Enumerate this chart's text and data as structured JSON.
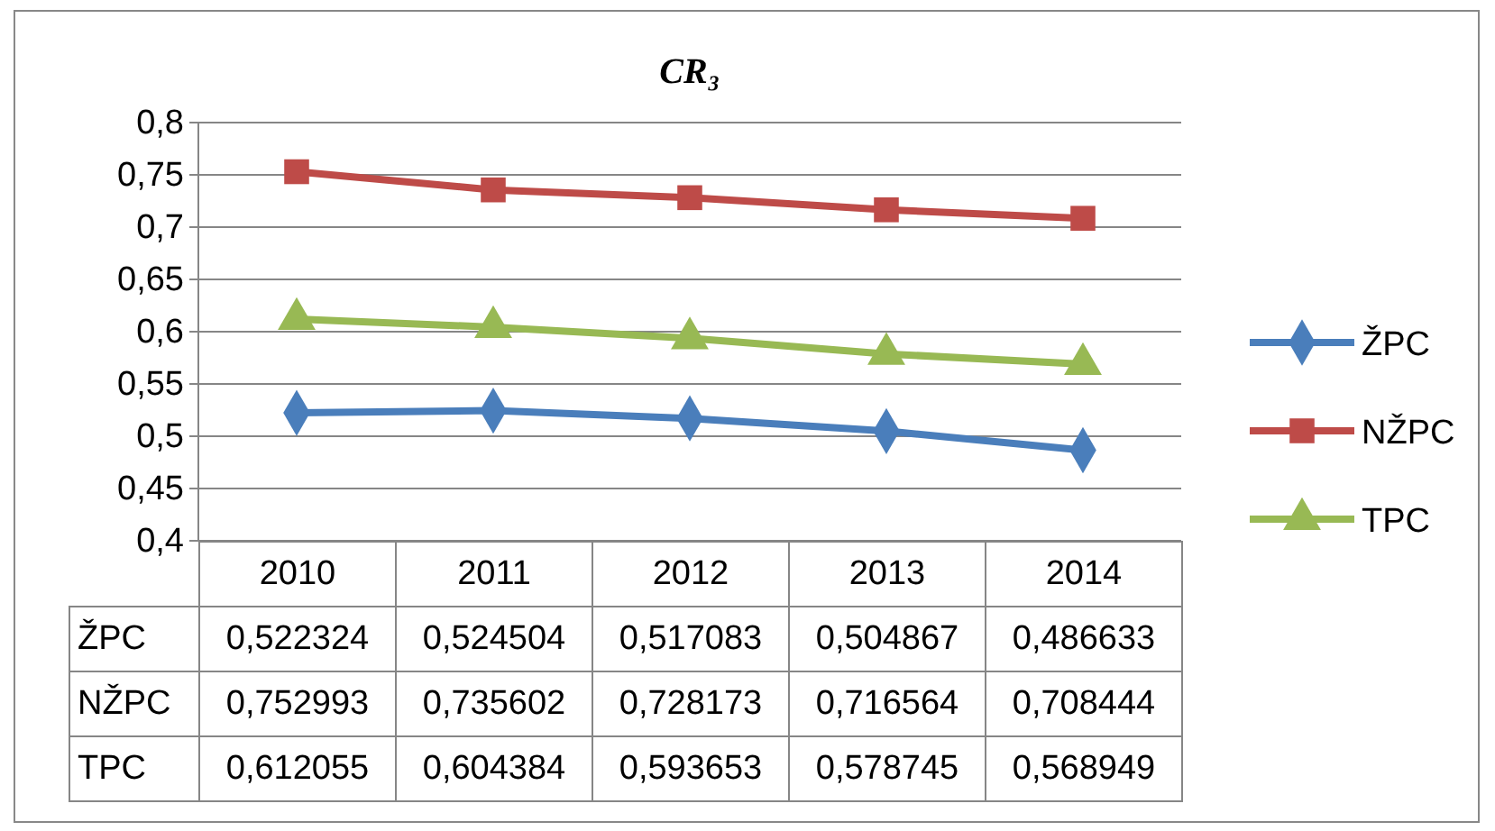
{
  "chart_data": {
    "type": "line",
    "title": "CR₃",
    "categories": [
      "2010",
      "2011",
      "2012",
      "2013",
      "2014"
    ],
    "series": [
      {
        "name": "ŽPC",
        "color": "#4a7ebb",
        "marker": "diamond",
        "values": [
          0.522324,
          0.524504,
          0.517083,
          0.504867,
          0.486633
        ],
        "value_labels": [
          "0,522324",
          "0,524504",
          "0,517083",
          "0,504867",
          "0,486633"
        ]
      },
      {
        "name": "NŽPC",
        "color": "#be4b48",
        "marker": "square",
        "values": [
          0.752993,
          0.735602,
          0.728173,
          0.716564,
          0.708444
        ],
        "value_labels": [
          "0,752993",
          "0,735602",
          "0,728173",
          "0,716564",
          "0,708444"
        ]
      },
      {
        "name": "TPC",
        "color": "#98b954",
        "marker": "triangle",
        "values": [
          0.612055,
          0.604384,
          0.593653,
          0.578745,
          0.568949
        ],
        "value_labels": [
          "0,612055",
          "0,604384",
          "0,593653",
          "0,578745",
          "0,568949"
        ]
      }
    ],
    "ylim": [
      0.4,
      0.8
    ],
    "yticks": [
      {
        "value": 0.4,
        "label": "0,4"
      },
      {
        "value": 0.45,
        "label": "0,45"
      },
      {
        "value": 0.5,
        "label": "0,5"
      },
      {
        "value": 0.55,
        "label": "0,55"
      },
      {
        "value": 0.6,
        "label": "0,6"
      },
      {
        "value": 0.65,
        "label": "0,65"
      },
      {
        "value": 0.7,
        "label": "0,7"
      },
      {
        "value": 0.75,
        "label": "0,75"
      },
      {
        "value": 0.8,
        "label": "0,8"
      }
    ],
    "grid": "y",
    "legend": "right",
    "line_style": "solid"
  }
}
